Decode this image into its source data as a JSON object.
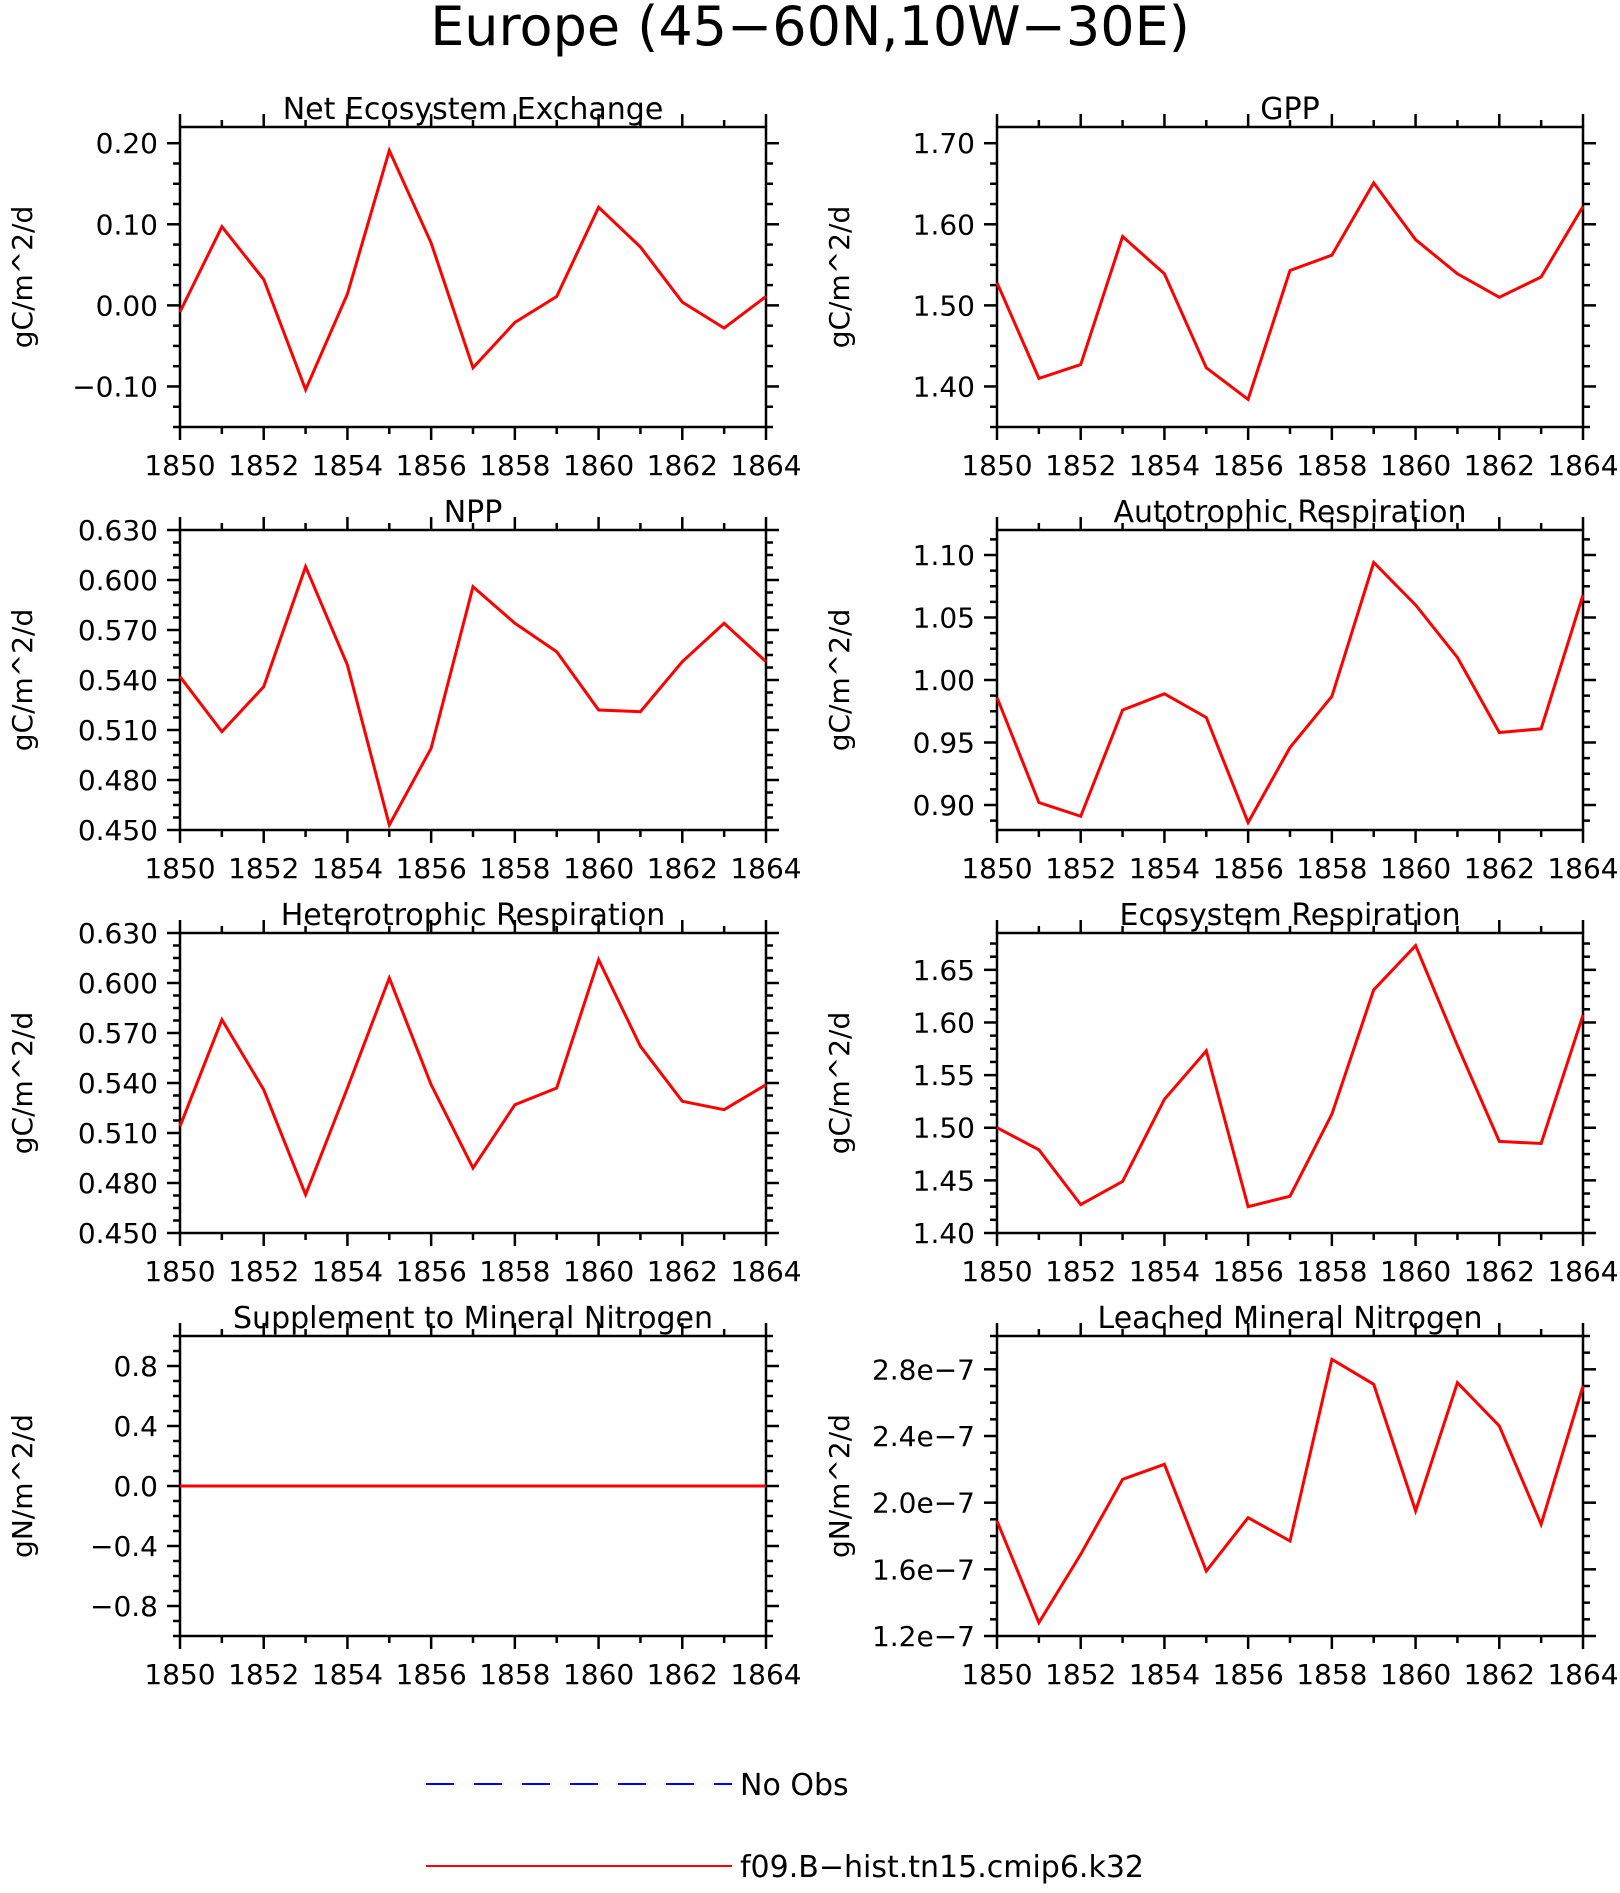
{
  "title": "Europe (45−60N,10W−30E)",
  "colors": {
    "model": "#ff0000",
    "obs": "#0000ff"
  },
  "legend": [
    {
      "label": "No Obs",
      "color": "#0000ff",
      "style": "dashed"
    },
    {
      "label": "f09.B−hist.tn15.cmip6.k32",
      "color": "#ff0000",
      "style": "solid"
    }
  ],
  "chart_data": [
    {
      "type": "line",
      "title": "Net Ecosystem Exchange",
      "ylabel": "gC/m^2/d",
      "x": [
        1850,
        1851,
        1852,
        1853,
        1854,
        1855,
        1856,
        1857,
        1858,
        1859,
        1860,
        1861,
        1862,
        1863,
        1864
      ],
      "xlim": [
        1850,
        1864
      ],
      "xticks": [
        "1850",
        "1852",
        "1854",
        "1856",
        "1858",
        "1860",
        "1862",
        "1864"
      ],
      "ylim": [
        -0.15,
        0.22
      ],
      "yticks": [
        -0.1,
        0.0,
        0.1,
        0.2
      ],
      "ytick_labels": [
        "−0.10",
        "0.00",
        "0.10",
        "0.20"
      ],
      "series": [
        {
          "name": "f09.B−hist.tn15.cmip6.k32",
          "values": [
            -0.008,
            0.097,
            0.032,
            -0.104,
            0.014,
            0.191,
            0.077,
            -0.077,
            -0.021,
            0.011,
            0.121,
            0.072,
            0.004,
            -0.028,
            0.011
          ]
        }
      ]
    },
    {
      "type": "line",
      "title": "GPP",
      "ylabel": "gC/m^2/d",
      "x": [
        1850,
        1851,
        1852,
        1853,
        1854,
        1855,
        1856,
        1857,
        1858,
        1859,
        1860,
        1861,
        1862,
        1863,
        1864
      ],
      "xlim": [
        1850,
        1864
      ],
      "xticks": [
        "1850",
        "1852",
        "1854",
        "1856",
        "1858",
        "1860",
        "1862",
        "1864"
      ],
      "ylim": [
        1.35,
        1.72
      ],
      "yticks": [
        1.4,
        1.5,
        1.6,
        1.7
      ],
      "ytick_labels": [
        "1.40",
        "1.50",
        "1.60",
        "1.70"
      ],
      "series": [
        {
          "name": "f09.B−hist.tn15.cmip6.k32",
          "values": [
            1.528,
            1.41,
            1.427,
            1.585,
            1.539,
            1.423,
            1.384,
            1.543,
            1.562,
            1.651,
            1.581,
            1.539,
            1.51,
            1.535,
            1.622
          ]
        }
      ]
    },
    {
      "type": "line",
      "title": "NPP",
      "ylabel": "gC/m^2/d",
      "x": [
        1850,
        1851,
        1852,
        1853,
        1854,
        1855,
        1856,
        1857,
        1858,
        1859,
        1860,
        1861,
        1862,
        1863,
        1864
      ],
      "xlim": [
        1850,
        1864
      ],
      "xticks": [
        "1850",
        "1852",
        "1854",
        "1856",
        "1858",
        "1860",
        "1862",
        "1864"
      ],
      "ylim": [
        0.45,
        0.63
      ],
      "yticks": [
        0.45,
        0.48,
        0.51,
        0.54,
        0.57,
        0.6,
        0.63
      ],
      "ytick_labels": [
        "0.450",
        "0.480",
        "0.510",
        "0.540",
        "0.570",
        "0.600",
        "0.630"
      ],
      "series": [
        {
          "name": "f09.B−hist.tn15.cmip6.k32",
          "values": [
            0.542,
            0.509,
            0.536,
            0.608,
            0.549,
            0.453,
            0.499,
            0.596,
            0.574,
            0.557,
            0.522,
            0.521,
            0.551,
            0.574,
            0.551
          ]
        }
      ]
    },
    {
      "type": "line",
      "title": "Autotrophic Respiration",
      "ylabel": "gC/m^2/d",
      "x": [
        1850,
        1851,
        1852,
        1853,
        1854,
        1855,
        1856,
        1857,
        1858,
        1859,
        1860,
        1861,
        1862,
        1863,
        1864
      ],
      "xlim": [
        1850,
        1864
      ],
      "xticks": [
        "1850",
        "1852",
        "1854",
        "1856",
        "1858",
        "1860",
        "1862",
        "1864"
      ],
      "ylim": [
        0.88,
        1.12
      ],
      "yticks": [
        0.9,
        0.95,
        1.0,
        1.05,
        1.1
      ],
      "ytick_labels": [
        "0.90",
        "0.95",
        "1.00",
        "1.05",
        "1.10"
      ],
      "series": [
        {
          "name": "f09.B−hist.tn15.cmip6.k32",
          "values": [
            0.986,
            0.902,
            0.891,
            0.976,
            0.989,
            0.97,
            0.886,
            0.946,
            0.987,
            1.094,
            1.06,
            1.018,
            0.958,
            0.961,
            1.068
          ]
        }
      ]
    },
    {
      "type": "line",
      "title": "Heterotrophic Respiration",
      "ylabel": "gC/m^2/d",
      "x": [
        1850,
        1851,
        1852,
        1853,
        1854,
        1855,
        1856,
        1857,
        1858,
        1859,
        1860,
        1861,
        1862,
        1863,
        1864
      ],
      "xlim": [
        1850,
        1864
      ],
      "xticks": [
        "1850",
        "1852",
        "1854",
        "1856",
        "1858",
        "1860",
        "1862",
        "1864"
      ],
      "ylim": [
        0.45,
        0.63
      ],
      "yticks": [
        0.45,
        0.48,
        0.51,
        0.54,
        0.57,
        0.6,
        0.63
      ],
      "ytick_labels": [
        "0.450",
        "0.480",
        "0.510",
        "0.540",
        "0.570",
        "0.600",
        "0.630"
      ],
      "series": [
        {
          "name": "f09.B−hist.tn15.cmip6.k32",
          "values": [
            0.514,
            0.578,
            0.536,
            0.473,
            0.537,
            0.603,
            0.539,
            0.489,
            0.527,
            0.537,
            0.614,
            0.562,
            0.529,
            0.524,
            0.539
          ]
        }
      ]
    },
    {
      "type": "line",
      "title": "Ecosystem Respiration",
      "ylabel": "gC/m^2/d",
      "x": [
        1850,
        1851,
        1852,
        1853,
        1854,
        1855,
        1856,
        1857,
        1858,
        1859,
        1860,
        1861,
        1862,
        1863,
        1864
      ],
      "xlim": [
        1850,
        1864
      ],
      "xticks": [
        "1850",
        "1852",
        "1854",
        "1856",
        "1858",
        "1860",
        "1862",
        "1864"
      ],
      "ylim": [
        1.4,
        1.685
      ],
      "yticks": [
        1.4,
        1.45,
        1.5,
        1.55,
        1.6,
        1.65
      ],
      "ytick_labels": [
        "1.40",
        "1.45",
        "1.50",
        "1.55",
        "1.60",
        "1.65"
      ],
      "series": [
        {
          "name": "f09.B−hist.tn15.cmip6.k32",
          "values": [
            1.5,
            1.479,
            1.427,
            1.449,
            1.527,
            1.573,
            1.425,
            1.435,
            1.513,
            1.631,
            1.673,
            1.578,
            1.487,
            1.485,
            1.607
          ]
        }
      ]
    },
    {
      "type": "line",
      "title": "Supplement to Mineral Nitrogen",
      "ylabel": "gN/m^2/d",
      "x": [
        1850,
        1851,
        1852,
        1853,
        1854,
        1855,
        1856,
        1857,
        1858,
        1859,
        1860,
        1861,
        1862,
        1863,
        1864
      ],
      "xlim": [
        1850,
        1864
      ],
      "xticks": [
        "1850",
        "1852",
        "1854",
        "1856",
        "1858",
        "1860",
        "1862",
        "1864"
      ],
      "ylim": [
        -1.0,
        1.0
      ],
      "yticks": [
        -0.8,
        -0.4,
        0.0,
        0.4,
        0.8
      ],
      "ytick_labels": [
        "−0.8",
        "−0.4",
        "0.0",
        "0.4",
        "0.8"
      ],
      "series": [
        {
          "name": "f09.B−hist.tn15.cmip6.k32",
          "values": [
            0,
            0,
            0,
            0,
            0,
            0,
            0,
            0,
            0,
            0,
            0,
            0,
            0,
            0,
            0
          ]
        }
      ]
    },
    {
      "type": "line",
      "title": "Leached Mineral Nitrogen",
      "ylabel": "gN/m^2/d",
      "x": [
        1850,
        1851,
        1852,
        1853,
        1854,
        1855,
        1856,
        1857,
        1858,
        1859,
        1860,
        1861,
        1862,
        1863,
        1864
      ],
      "xlim": [
        1850,
        1864
      ],
      "xticks": [
        "1850",
        "1852",
        "1854",
        "1856",
        "1858",
        "1860",
        "1862",
        "1864"
      ],
      "ylim": [
        1.2e-07,
        3e-07
      ],
      "yticks": [
        1.2e-07,
        1.6e-07,
        2e-07,
        2.4e-07,
        2.8e-07
      ],
      "ytick_labels": [
        "1.2e−7",
        "1.6e−7",
        "2.0e−7",
        "2.4e−7",
        "2.8e−7"
      ],
      "series": [
        {
          "name": "f09.B−hist.tn15.cmip6.k32",
          "values": [
            1.89e-07,
            1.28e-07,
            1.69e-07,
            2.14e-07,
            2.23e-07,
            1.59e-07,
            1.91e-07,
            1.77e-07,
            2.86e-07,
            2.71e-07,
            1.95e-07,
            2.72e-07,
            2.46e-07,
            1.87e-07,
            2.7e-07
          ]
        }
      ]
    }
  ]
}
